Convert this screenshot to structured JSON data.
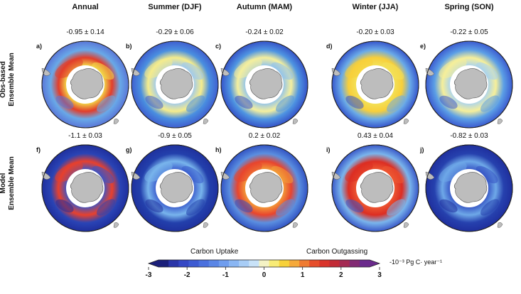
{
  "seasons": [
    "Annual",
    "Summer (DJF)",
    "Autumn (MAM)",
    "Winter (JJA)",
    "Spring (SON)"
  ],
  "rows": [
    {
      "label_line1": "Obs-based",
      "label_line2": "Ensemble Mean",
      "panels": [
        {
          "letter": "a)",
          "value": "-0.95 ± 0.14",
          "palette": [
            "#5a77d8",
            "#f3e14a",
            "#e23e2b",
            "#f7f28a",
            "#69a9e8"
          ]
        },
        {
          "letter": "b)",
          "value": "-0.29 ± 0.06",
          "palette": [
            "#3f5fd0",
            "#9dc8f0",
            "#f5ec8c",
            "#cfe3f6",
            "#4a8fe0"
          ]
        },
        {
          "letter": "c)",
          "value": "-0.24 ± 0.02",
          "palette": [
            "#3553c8",
            "#8fc2ee",
            "#f4ef9e",
            "#d9ebf7",
            "#4f95e2"
          ]
        },
        {
          "letter": "d)",
          "value": "-0.20 ± 0.03",
          "palette": [
            "#3656cc",
            "#f2e25a",
            "#f8cf3a",
            "#fbf4a5",
            "#6aaae8"
          ]
        },
        {
          "letter": "e)",
          "value": "-0.22 ± 0.05",
          "palette": [
            "#3b5bd0",
            "#a7d2f2",
            "#f6ef9a",
            "#dcecf7",
            "#5c9fe6"
          ]
        }
      ]
    },
    {
      "label_line1": "Model",
      "label_line2": "Ensemble Mean",
      "panels": [
        {
          "letter": "f)",
          "value": "-1.1 ± 0.03",
          "palette": [
            "#1f2f9e",
            "#3a55c6",
            "#e8412d",
            "#4168d0",
            "#2a44b5"
          ]
        },
        {
          "letter": "g)",
          "value": "-0.9 ± 0.05",
          "palette": [
            "#1f319e",
            "#3a5bcc",
            "#78b4ec",
            "#3a5bcc",
            "#2340ac"
          ]
        },
        {
          "letter": "h)",
          "value": "0.2 ± 0.02",
          "palette": [
            "#3253c3",
            "#f3a23a",
            "#e8452e",
            "#f6c842",
            "#5b8fe0"
          ]
        },
        {
          "letter": "i)",
          "value": "0.43 ± 0.04",
          "palette": [
            "#3a58c8",
            "#ee5a33",
            "#dc2e23",
            "#f38a3a",
            "#7ab5ec"
          ]
        },
        {
          "letter": "j)",
          "value": "-0.82 ± 0.03",
          "palette": [
            "#1f2f9e",
            "#3553c3",
            "#6ea8e8",
            "#3a58c8",
            "#2641ae"
          ]
        }
      ]
    }
  ],
  "colorbar": {
    "left_label": "Carbon Uptake",
    "right_label": "Carbon Outgassing",
    "units": "-10⁻³ Pg C· year⁻¹",
    "ticks": [
      "-3",
      "-2",
      "-1",
      "0",
      "1",
      "2",
      "3"
    ],
    "colors": [
      "#1b1f7a",
      "#2a35a8",
      "#3447c4",
      "#3d5bd2",
      "#4a70de",
      "#5a86e6",
      "#6f9dee",
      "#8ab6f3",
      "#a8cdf6",
      "#c8e2f8",
      "#f4f2c4",
      "#f8eb76",
      "#f7d13a",
      "#f5a93a",
      "#ef7b32",
      "#e64e2b",
      "#d9342b",
      "#c22b36",
      "#a42a52",
      "#822a73",
      "#6a2a8c"
    ]
  }
}
